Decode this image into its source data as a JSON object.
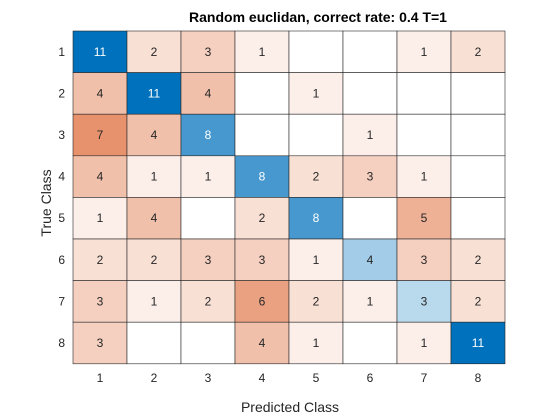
{
  "chart_data": {
    "type": "heatmap",
    "title": "Random euclidan, correct rate: 0.4 T=1",
    "xlabel": "Predicted Class",
    "ylabel": "True Class",
    "x_categories": [
      "1",
      "2",
      "3",
      "4",
      "5",
      "6",
      "7",
      "8"
    ],
    "y_categories": [
      "1",
      "2",
      "3",
      "4",
      "5",
      "6",
      "7",
      "8"
    ],
    "values": [
      [
        11,
        2,
        3,
        1,
        null,
        null,
        1,
        2
      ],
      [
        4,
        11,
        4,
        null,
        1,
        null,
        null,
        null
      ],
      [
        7,
        4,
        8,
        null,
        null,
        1,
        null,
        null
      ],
      [
        4,
        1,
        1,
        8,
        2,
        3,
        1,
        null
      ],
      [
        1,
        4,
        null,
        2,
        8,
        null,
        5,
        null
      ],
      [
        2,
        2,
        3,
        3,
        1,
        4,
        3,
        2
      ],
      [
        3,
        1,
        2,
        6,
        2,
        1,
        3,
        2
      ],
      [
        3,
        null,
        null,
        4,
        1,
        null,
        1,
        11
      ]
    ],
    "diagonal_color_scale": [
      "#ffffff",
      "#0072bd"
    ],
    "off_diagonal_color_scale": [
      "#ffffff",
      "#d95319"
    ],
    "grid": true
  }
}
